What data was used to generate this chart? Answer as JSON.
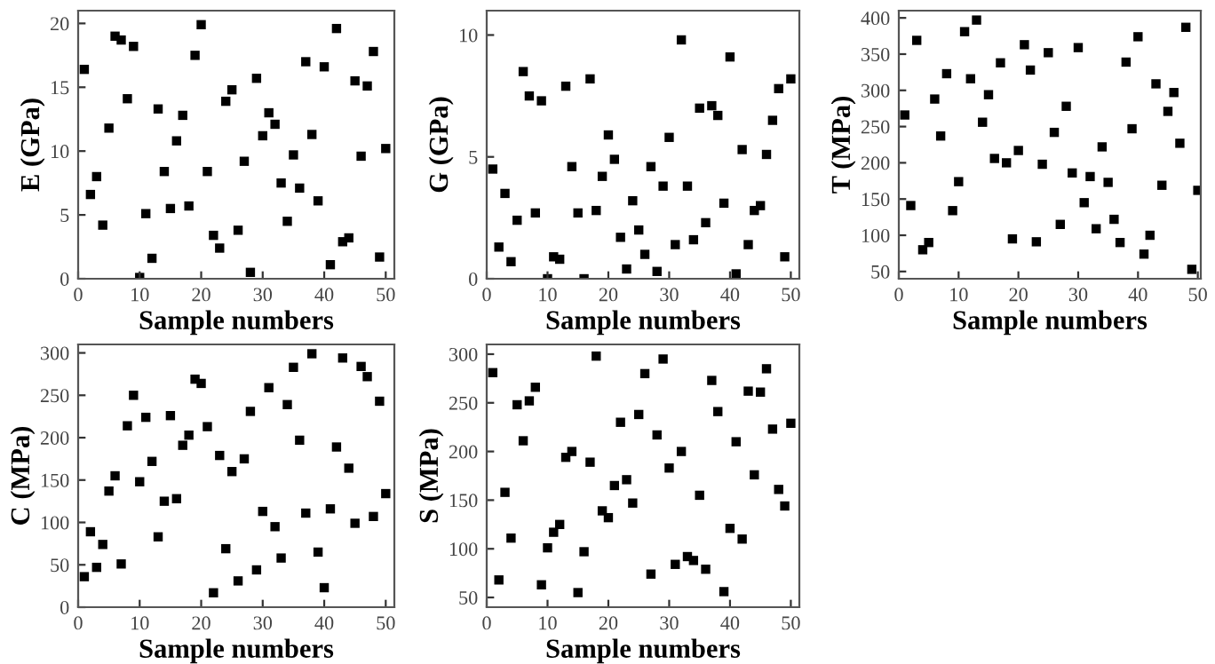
{
  "chart_data": [
    {
      "type": "scatter",
      "xlabel": "Sample numbers",
      "ylabel": "E (GPa)",
      "marker": "square",
      "color": "#000000",
      "x": [
        1,
        2,
        3,
        4,
        5,
        6,
        7,
        8,
        9,
        10,
        11,
        12,
        13,
        14,
        15,
        16,
        17,
        18,
        19,
        20,
        21,
        22,
        23,
        24,
        25,
        26,
        27,
        28,
        29,
        30,
        31,
        32,
        33,
        34,
        35,
        36,
        37,
        38,
        39,
        40,
        41,
        42,
        43,
        44,
        45,
        46,
        47,
        48,
        49,
        50
      ],
      "values": [
        16.4,
        6.6,
        8.0,
        4.2,
        11.8,
        19.0,
        18.7,
        14.1,
        18.2,
        0.1,
        5.1,
        1.6,
        13.3,
        8.4,
        5.5,
        10.8,
        12.8,
        5.7,
        17.5,
        19.9,
        8.4,
        3.4,
        2.4,
        13.9,
        14.8,
        3.8,
        9.2,
        0.5,
        15.7,
        11.2,
        13.0,
        12.1,
        7.5,
        4.5,
        9.7,
        7.1,
        17.0,
        11.3,
        6.1,
        16.6,
        1.1,
        19.6,
        2.9,
        3.2,
        15.5,
        9.6,
        15.1,
        17.8,
        1.7,
        10.2
      ],
      "xlim": [
        0,
        51.4
      ],
      "xticks": [
        0,
        10,
        20,
        30,
        40,
        50
      ],
      "ylim": [
        0,
        21
      ],
      "yticks": [
        0,
        5,
        10,
        15,
        20
      ]
    },
    {
      "type": "scatter",
      "xlabel": "Sample numbers",
      "ylabel": "G (GPa)",
      "marker": "square",
      "color": "#000000",
      "x": [
        1,
        2,
        3,
        4,
        5,
        6,
        7,
        8,
        9,
        10,
        11,
        12,
        13,
        14,
        15,
        16,
        17,
        18,
        19,
        20,
        21,
        22,
        23,
        24,
        25,
        26,
        27,
        28,
        29,
        30,
        31,
        32,
        33,
        34,
        35,
        36,
        37,
        38,
        39,
        40,
        41,
        42,
        43,
        44,
        45,
        46,
        47,
        48,
        49,
        50
      ],
      "values": [
        4.5,
        1.3,
        3.5,
        0.7,
        2.4,
        8.5,
        7.5,
        2.7,
        7.3,
        0.0,
        0.9,
        0.8,
        7.9,
        4.6,
        2.7,
        0.0,
        8.2,
        2.8,
        4.2,
        5.9,
        4.9,
        1.7,
        0.4,
        3.2,
        2.0,
        1.0,
        4.6,
        0.3,
        3.8,
        5.8,
        1.4,
        9.8,
        3.8,
        1.6,
        7.0,
        2.3,
        7.1,
        6.7,
        3.1,
        9.1,
        0.2,
        5.3,
        1.4,
        2.8,
        3.0,
        5.1,
        6.5,
        7.8,
        0.9,
        8.2
      ],
      "xlim": [
        0,
        51.4
      ],
      "xticks": [
        0,
        10,
        20,
        30,
        40,
        50
      ],
      "ylim": [
        0,
        11
      ],
      "yticks": [
        0,
        5,
        10
      ]
    },
    {
      "type": "scatter",
      "xlabel": "Sample numbers",
      "ylabel": "T (MPa)",
      "marker": "square",
      "color": "#000000",
      "x": [
        1,
        2,
        3,
        4,
        5,
        6,
        7,
        8,
        9,
        10,
        11,
        12,
        13,
        14,
        15,
        16,
        17,
        18,
        19,
        20,
        21,
        22,
        23,
        24,
        25,
        26,
        27,
        28,
        29,
        30,
        31,
        32,
        33,
        34,
        35,
        36,
        37,
        38,
        39,
        40,
        41,
        42,
        43,
        44,
        45,
        46,
        47,
        48,
        49,
        50
      ],
      "values": [
        266,
        141,
        369,
        80,
        90,
        288,
        237,
        323,
        134,
        174,
        381,
        316,
        397,
        256,
        294,
        206,
        338,
        200,
        95,
        217,
        363,
        328,
        91,
        198,
        352,
        242,
        115,
        278,
        186,
        359,
        145,
        181,
        109,
        222,
        173,
        122,
        90,
        339,
        247,
        374,
        74,
        100,
        309,
        169,
        271,
        297,
        227,
        387,
        53,
        162
      ],
      "xlim": [
        0,
        50.5
      ],
      "xticks": [
        0,
        10,
        20,
        30,
        40,
        50
      ],
      "ylim": [
        40,
        410
      ],
      "yticks": [
        50,
        100,
        150,
        200,
        250,
        300,
        350,
        400
      ]
    },
    {
      "type": "scatter",
      "xlabel": "Sample numbers",
      "ylabel": "C (MPa)",
      "marker": "square",
      "color": "#000000",
      "x": [
        1,
        2,
        3,
        4,
        5,
        6,
        7,
        8,
        9,
        10,
        11,
        12,
        13,
        14,
        15,
        16,
        17,
        18,
        19,
        20,
        21,
        22,
        23,
        24,
        25,
        26,
        27,
        28,
        29,
        30,
        31,
        32,
        33,
        34,
        35,
        36,
        37,
        38,
        39,
        40,
        41,
        42,
        43,
        44,
        45,
        46,
        47,
        48,
        49,
        50
      ],
      "values": [
        36,
        89,
        47,
        74,
        137,
        155,
        51,
        214,
        250,
        148,
        224,
        172,
        83,
        125,
        226,
        128,
        191,
        203,
        269,
        264,
        213,
        17,
        179,
        69,
        160,
        31,
        175,
        231,
        44,
        113,
        259,
        95,
        58,
        239,
        283,
        197,
        111,
        299,
        65,
        23,
        116,
        189,
        294,
        164,
        99,
        284,
        272,
        107,
        243,
        134
      ],
      "xlim": [
        0,
        51.4
      ],
      "xticks": [
        0,
        10,
        20,
        30,
        40,
        50
      ],
      "ylim": [
        0,
        310
      ],
      "yticks": [
        0,
        50,
        100,
        150,
        200,
        250,
        300
      ]
    },
    {
      "type": "scatter",
      "xlabel": "Sample numbers",
      "ylabel": "S (MPa)",
      "marker": "square",
      "color": "#000000",
      "x": [
        1,
        2,
        3,
        4,
        5,
        6,
        7,
        8,
        9,
        10,
        11,
        12,
        13,
        14,
        15,
        16,
        17,
        18,
        19,
        20,
        21,
        22,
        23,
        24,
        25,
        26,
        27,
        28,
        29,
        30,
        31,
        32,
        33,
        34,
        35,
        36,
        37,
        38,
        39,
        40,
        41,
        42,
        43,
        44,
        45,
        46,
        47,
        48,
        49,
        50
      ],
      "values": [
        281,
        68,
        158,
        111,
        248,
        211,
        252,
        266,
        63,
        101,
        117,
        125,
        194,
        200,
        55,
        97,
        189,
        298,
        139,
        132,
        165,
        230,
        171,
        147,
        238,
        280,
        74,
        217,
        295,
        183,
        84,
        200,
        92,
        88,
        155,
        79,
        273,
        241,
        56,
        121,
        210,
        110,
        262,
        176,
        261,
        285,
        223,
        161,
        144,
        229
      ],
      "xlim": [
        0,
        51.4
      ],
      "xticks": [
        0,
        10,
        20,
        30,
        40,
        50
      ],
      "ylim": [
        40,
        310
      ],
      "yticks": [
        50,
        100,
        150,
        200,
        250,
        300
      ]
    }
  ]
}
